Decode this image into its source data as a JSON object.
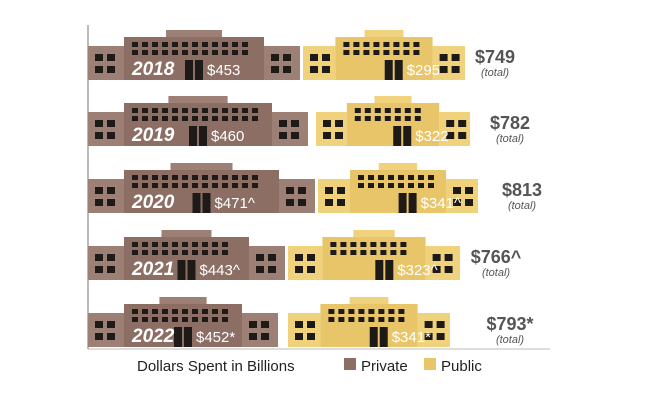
{
  "chart_data": {
    "type": "bar",
    "title": "Dollars Spent in Billions",
    "categories": [
      "2018",
      "2019",
      "2020",
      "2021",
      "2022"
    ],
    "series": [
      {
        "name": "Private",
        "values": [
          453,
          460,
          471,
          443,
          452
        ],
        "labels": [
          "$453",
          "$460",
          "$471^",
          "$443^",
          "$452*"
        ],
        "color": "#8c6e64"
      },
      {
        "name": "Public",
        "values": [
          295,
          322,
          341,
          323,
          341
        ],
        "labels": [
          "$295",
          "$322",
          "$341^",
          "$323^",
          "$341*"
        ],
        "color": "#e9c56a"
      }
    ],
    "totals": [
      749,
      782,
      813,
      766,
      793
    ],
    "total_labels": [
      "$749",
      "$782",
      "$813",
      "$766^",
      "$793*"
    ],
    "total_sub": "(total)",
    "legend": {
      "title": "Dollars Spent in Billions",
      "private": "Private",
      "public": "Public",
      "placement": "bottom"
    }
  }
}
